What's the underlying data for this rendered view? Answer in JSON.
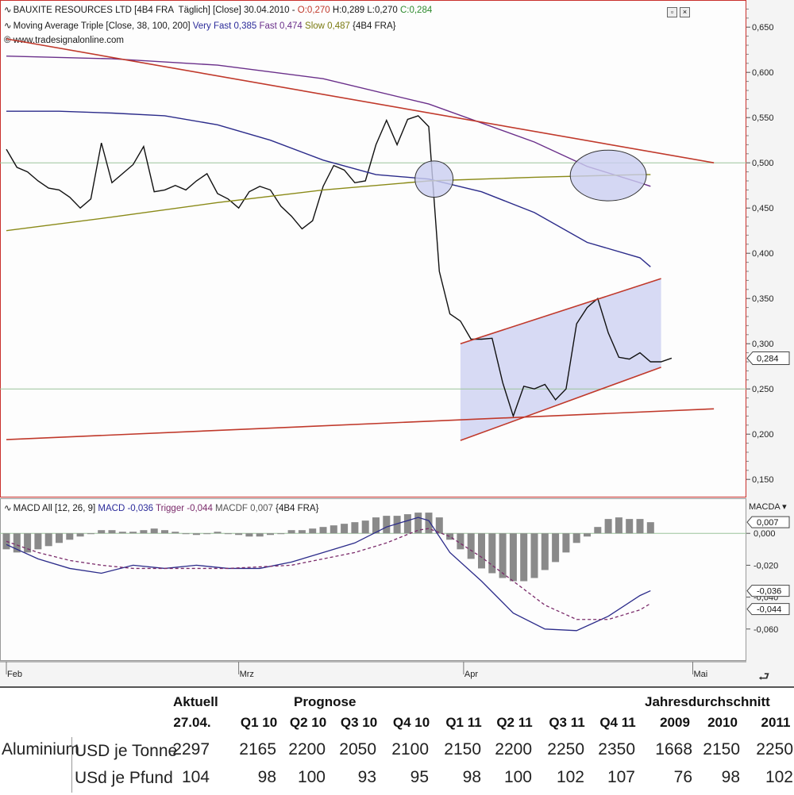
{
  "main_panel": {
    "title_segments": [
      {
        "text": "BAUXITE RESOURCES LTD [4B4 FRA  Täglich] [Close] 30.04.2010 - ",
        "color": "#1a1a1a"
      },
      {
        "text": "O:0,270 ",
        "color": "#c0392b"
      },
      {
        "text": "H:0,289 L:0,270 ",
        "color": "#1a1a1a"
      },
      {
        "text": "C:0,284",
        "color": "#2e8b2e"
      }
    ],
    "ma_segments": [
      {
        "text": "Moving Average Triple [Close, 38, 100, 200] ",
        "color": "#1a1a1a"
      },
      {
        "text": "Very Fast 0,385 ",
        "color": "#2b2b9a"
      },
      {
        "text": "Fast 0,474 ",
        "color": "#6a2f8a"
      },
      {
        "text": "Slow 0,487 ",
        "color": "#7a7a10"
      },
      {
        "text": "{4B4 FRA}",
        "color": "#1a1a1a"
      }
    ],
    "source": "© www.tradesignalonline.com",
    "price_tag": "0,284"
  },
  "macd_panel": {
    "header_segments": [
      {
        "text": "MACD All [12, 26, 9] ",
        "color": "#1a1a1a"
      },
      {
        "text": "MACD -0,036 ",
        "color": "#2b2b9a"
      },
      {
        "text": "Trigger -0,044 ",
        "color": "#7a2a6a"
      },
      {
        "text": "MACDF 0,007 ",
        "color": "#555555"
      },
      {
        "text": "{4B4 FRA}",
        "color": "#1a1a1a"
      }
    ],
    "dropdown_label": "MACDA ▾",
    "tags": [
      "0,007",
      "-0,036",
      "-0,044"
    ]
  },
  "x_axis": {
    "labels": [
      "Feb",
      "Mrz",
      "Apr",
      "Mai"
    ]
  },
  "chart_data": [
    {
      "type": "line",
      "ylim": [
        0.13,
        0.68
      ],
      "yticks": [
        "0,150",
        "0,200",
        "0,250",
        "0,300",
        "0,350",
        "0,400",
        "0,450",
        "0,500",
        "0,550",
        "0,600",
        "0,650"
      ],
      "ytick_values": [
        0.15,
        0.2,
        0.25,
        0.3,
        0.35,
        0.4,
        0.45,
        0.5,
        0.55,
        0.6,
        0.65
      ],
      "series": [
        {
          "key": "close",
          "color": "#111111",
          "x": [
            0,
            1,
            2,
            3,
            4,
            5,
            6,
            7,
            8,
            9,
            10,
            11,
            12,
            13,
            14,
            15,
            16,
            17,
            18,
            19,
            20,
            21,
            22,
            23,
            24,
            25,
            26,
            27,
            28,
            29,
            30,
            31,
            32,
            33,
            34,
            35,
            36,
            37,
            38,
            39,
            40,
            41,
            42,
            43,
            44,
            45,
            46,
            47,
            48,
            49,
            50,
            51,
            52,
            53,
            54,
            55,
            56,
            57,
            58,
            59,
            60,
            61,
            62,
            63
          ],
          "y": [
            0.515,
            0.495,
            0.49,
            0.48,
            0.472,
            0.47,
            0.462,
            0.45,
            0.46,
            0.522,
            0.478,
            0.488,
            0.498,
            0.518,
            0.468,
            0.47,
            0.475,
            0.47,
            0.48,
            0.488,
            0.466,
            0.46,
            0.45,
            0.468,
            0.474,
            0.47,
            0.452,
            0.441,
            0.427,
            0.436,
            0.474,
            0.497,
            0.492,
            0.478,
            0.48,
            0.52,
            0.547,
            0.52,
            0.548,
            0.552,
            0.54,
            0.38,
            0.333,
            0.325,
            0.305,
            0.305,
            0.306,
            0.257,
            0.22,
            0.253,
            0.25,
            0.255,
            0.238,
            0.25,
            0.322,
            0.34,
            0.35,
            0.312,
            0.285,
            0.283,
            0.29,
            0.28,
            0.28,
            0.284
          ]
        },
        {
          "key": "very_fast",
          "color": "#2b2b8a",
          "x": [
            0,
            5,
            10,
            15,
            20,
            25,
            30,
            35,
            40,
            45,
            50,
            55,
            60,
            61
          ],
          "y": [
            0.557,
            0.557,
            0.555,
            0.552,
            0.542,
            0.525,
            0.503,
            0.487,
            0.482,
            0.468,
            0.445,
            0.412,
            0.395,
            0.385
          ]
        },
        {
          "key": "fast",
          "color": "#6a2f8a",
          "x": [
            0,
            10,
            20,
            30,
            40,
            50,
            55,
            60,
            61
          ],
          "y": [
            0.618,
            0.615,
            0.608,
            0.593,
            0.565,
            0.523,
            0.496,
            0.478,
            0.474
          ]
        },
        {
          "key": "slow",
          "color": "#8a8a18",
          "x": [
            0,
            10,
            20,
            30,
            40,
            50,
            60,
            61
          ],
          "y": [
            0.425,
            0.44,
            0.456,
            0.47,
            0.48,
            0.484,
            0.487,
            0.487
          ]
        },
        {
          "key": "trend_upper",
          "color": "#c0392b",
          "x": [
            0,
            67
          ],
          "y": [
            0.637,
            0.5
          ]
        },
        {
          "key": "trend_lower",
          "color": "#c0392b",
          "x": [
            0,
            67
          ],
          "y": [
            0.194,
            0.228
          ]
        },
        {
          "key": "channel_top",
          "color": "#c0392b",
          "x": [
            43,
            62
          ],
          "y": [
            0.3,
            0.372
          ]
        },
        {
          "key": "channel_bottom",
          "color": "#c0392b",
          "x": [
            43,
            62
          ],
          "y": [
            0.193,
            0.274
          ]
        }
      ],
      "hlines": [
        {
          "y": 0.5,
          "color": "#9bc49b"
        },
        {
          "y": 0.25,
          "color": "#9bc49b"
        }
      ],
      "channel_fill": {
        "x": [
          43,
          62
        ],
        "top": [
          0.3,
          0.372
        ],
        "bottom": [
          0.193,
          0.274
        ],
        "color": "#c9cdf0"
      },
      "circles": [
        {
          "x": 40.5,
          "y": 0.482,
          "rx": 1.8,
          "ry": 0.02
        },
        {
          "x": 57,
          "y": 0.486,
          "rx": 3.6,
          "ry": 0.028
        }
      ],
      "grid": false
    },
    {
      "type": "bar",
      "ylim": [
        -0.08,
        0.022
      ],
      "yticks": [
        "0,000",
        "-0,020",
        "-0,040",
        "-0,060"
      ],
      "ytick_values": [
        0.0,
        -0.02,
        -0.04,
        -0.06
      ],
      "series": [
        {
          "key": "macdf",
          "name": "MACDF",
          "color": "#8a8a8a",
          "x": [
            0,
            1,
            2,
            3,
            4,
            5,
            6,
            7,
            8,
            9,
            10,
            11,
            12,
            13,
            14,
            15,
            16,
            17,
            18,
            19,
            20,
            21,
            22,
            23,
            24,
            25,
            26,
            27,
            28,
            29,
            30,
            31,
            32,
            33,
            34,
            35,
            36,
            37,
            38,
            39,
            40,
            41,
            42,
            43,
            44,
            45,
            46,
            47,
            48,
            49,
            50,
            51,
            52,
            53,
            54,
            55,
            56,
            57,
            58,
            59,
            60,
            61
          ],
          "y": [
            -0.01,
            -0.012,
            -0.012,
            -0.01,
            -0.008,
            -0.006,
            -0.004,
            -0.002,
            0.0,
            0.002,
            0.002,
            0.001,
            0.001,
            0.002,
            0.003,
            0.002,
            0.001,
            0.0,
            -0.001,
            0.0,
            0.001,
            0.0,
            -0.001,
            -0.002,
            -0.002,
            -0.001,
            0.0,
            0.002,
            0.002,
            0.003,
            0.004,
            0.005,
            0.006,
            0.007,
            0.008,
            0.01,
            0.011,
            0.011,
            0.012,
            0.013,
            0.013,
            0.01,
            -0.004,
            -0.01,
            -0.016,
            -0.022,
            -0.025,
            -0.028,
            -0.03,
            -0.03,
            -0.028,
            -0.023,
            -0.018,
            -0.012,
            -0.006,
            -0.002,
            0.004,
            0.009,
            0.01,
            0.009,
            0.009,
            0.007
          ]
        },
        {
          "key": "macd",
          "name": "MACD",
          "color": "#2b2b8a",
          "x": [
            0,
            3,
            6,
            9,
            12,
            15,
            18,
            21,
            24,
            27,
            30,
            33,
            36,
            39,
            40,
            42,
            45,
            48,
            51,
            54,
            57,
            60,
            61
          ],
          "y": [
            -0.007,
            -0.016,
            -0.022,
            -0.025,
            -0.02,
            -0.022,
            -0.02,
            -0.022,
            -0.022,
            -0.018,
            -0.012,
            -0.006,
            0.004,
            0.01,
            0.008,
            -0.012,
            -0.03,
            -0.05,
            -0.06,
            -0.061,
            -0.052,
            -0.039,
            -0.036
          ]
        },
        {
          "key": "trigger",
          "name": "Trigger",
          "color": "#7a2a6a",
          "x": [
            0,
            3,
            6,
            9,
            12,
            15,
            18,
            21,
            24,
            27,
            30,
            33,
            36,
            39,
            40,
            42,
            45,
            48,
            51,
            54,
            57,
            60,
            61
          ],
          "y": [
            -0.005,
            -0.012,
            -0.017,
            -0.02,
            -0.022,
            -0.022,
            -0.022,
            -0.022,
            -0.021,
            -0.02,
            -0.016,
            -0.012,
            -0.006,
            0.002,
            0.003,
            -0.002,
            -0.015,
            -0.03,
            -0.045,
            -0.054,
            -0.054,
            -0.048,
            -0.044
          ]
        }
      ],
      "grid": false
    }
  ],
  "table": {
    "aktuell_header": "Aktuell",
    "prognose_header": "Prognose",
    "jahres_header": "Jahresdurchschnitt",
    "columns": [
      "27.04.",
      "Q1 10",
      "Q2 10",
      "Q3 10",
      "Q4 10",
      "Q1 11",
      "Q2 11",
      "Q3 11",
      "Q4 11",
      "2009",
      "2010",
      "2011"
    ],
    "rows": [
      {
        "label": "Aluminium",
        "unit": "USD je Tonne",
        "values": [
          "2297",
          "2165",
          "2200",
          "2050",
          "2100",
          "2150",
          "2200",
          "2250",
          "2350",
          "1668",
          "2150",
          "2250"
        ]
      },
      {
        "label": "",
        "unit": "USd je Pfund",
        "values": [
          "104",
          "98",
          "100",
          "93",
          "95",
          "98",
          "100",
          "102",
          "107",
          "76",
          "98",
          "102"
        ]
      }
    ]
  }
}
